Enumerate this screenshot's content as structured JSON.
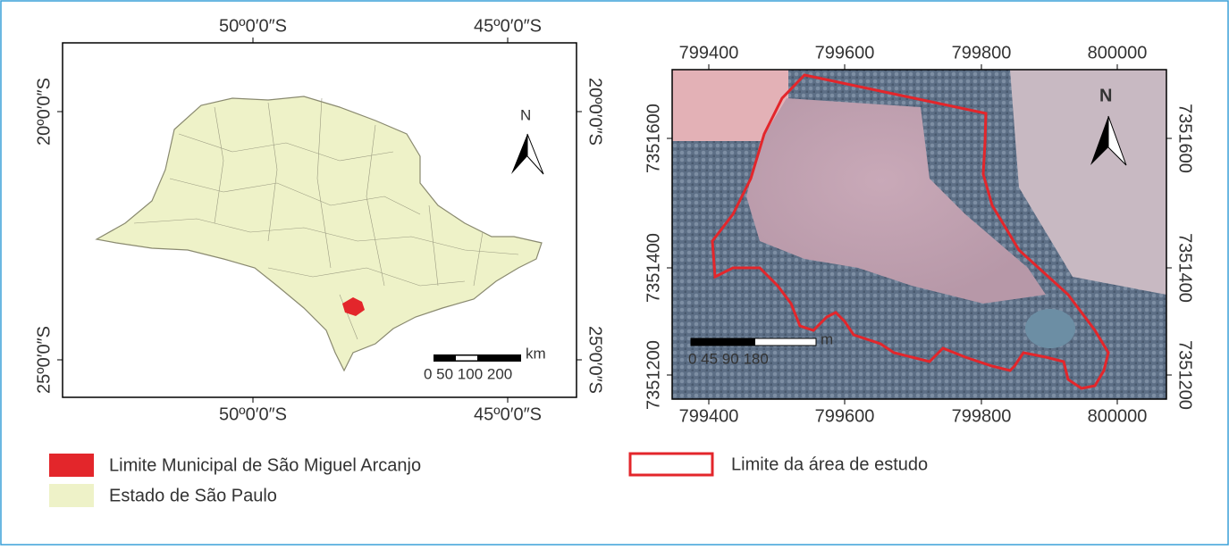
{
  "left_map": {
    "top_labels": [
      "50º0′0″S",
      "45º0′0″S"
    ],
    "side_labels": [
      "20º0′0″S",
      "25º0′0″S"
    ],
    "north": "N",
    "scale_unit": "km",
    "scale_labels": "0 50 100 200",
    "legend": [
      {
        "label": "Limite Municipal de São Miguel Arcanjo"
      },
      {
        "label": "Estado de São Paulo"
      }
    ]
  },
  "right_map": {
    "top_labels": [
      "799400",
      "799600",
      "799800",
      "800000"
    ],
    "side_labels": [
      "7351600",
      "7351400",
      "7351200"
    ],
    "north": "N",
    "scale_unit": "m",
    "scale_labels": "0  45  90      180",
    "legend": [
      {
        "label": "Limite da área de estudo"
      }
    ]
  }
}
